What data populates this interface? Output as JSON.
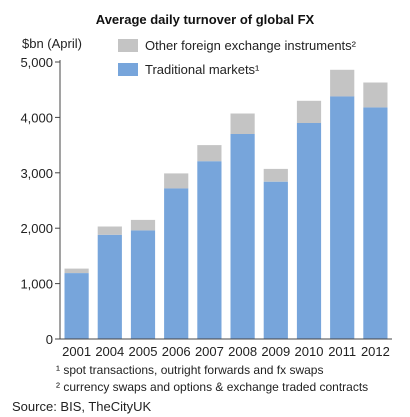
{
  "chart_data": {
    "type": "bar",
    "stacked": true,
    "title": "Average daily turnover of global FX",
    "ylabel": "$bn (April)",
    "xlabel": "",
    "ylim": [
      0,
      5000
    ],
    "yticks": [
      0,
      1000,
      2000,
      3000,
      4000,
      5000
    ],
    "ytick_labels": [
      "0",
      "1,000",
      "2,000",
      "3,000",
      "4,000",
      "5,000"
    ],
    "grid": false,
    "legend_position": "top",
    "categories": [
      "2001",
      "2004",
      "2005",
      "2006",
      "2007",
      "2008",
      "2009",
      "2010",
      "2011",
      "2012"
    ],
    "series": [
      {
        "name": "Traditional markets¹",
        "color": "#77a5db",
        "values": [
          1190,
          1880,
          1960,
          2720,
          3210,
          3700,
          2840,
          3900,
          4380,
          4180
        ]
      },
      {
        "name": "Other foreign exchange instruments²",
        "color": "#c4c4c4",
        "values": [
          80,
          150,
          190,
          270,
          290,
          370,
          230,
          400,
          480,
          450
        ]
      }
    ],
    "footnotes": [
      "¹ spot transactions, outright forwards and fx swaps",
      "² currency swaps and options & exchange traded contracts"
    ],
    "source": "Source: BIS, TheCityUK"
  }
}
